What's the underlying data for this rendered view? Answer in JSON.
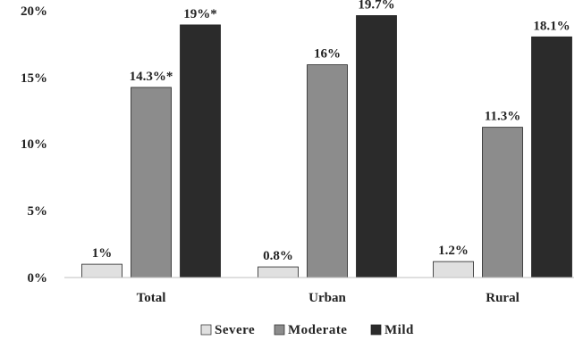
{
  "chart_data": {
    "type": "bar",
    "categories": [
      "Total",
      "Urban",
      "Rural"
    ],
    "series": [
      {
        "name": "Severe",
        "values": [
          1,
          0.8,
          1.2
        ],
        "labels": [
          "1%",
          "0.8%",
          "1.2%"
        ],
        "color": "#e0e0e0"
      },
      {
        "name": "Moderate",
        "values": [
          14.3,
          16,
          11.3
        ],
        "labels": [
          "14.3%*",
          "16%",
          "11.3%"
        ],
        "color": "#8c8c8c"
      },
      {
        "name": "Mild",
        "values": [
          19,
          19.7,
          18.1
        ],
        "labels": [
          "19%*",
          "19.7%",
          "18.1%"
        ],
        "color": "#2b2b2b"
      }
    ],
    "yticks": [
      "0%",
      "5%",
      "10%",
      "15%",
      "20%"
    ],
    "ytick_values": [
      0,
      5,
      10,
      15,
      20
    ],
    "ylim": [
      0,
      20
    ],
    "grid": false,
    "legend_position": "bottom"
  }
}
